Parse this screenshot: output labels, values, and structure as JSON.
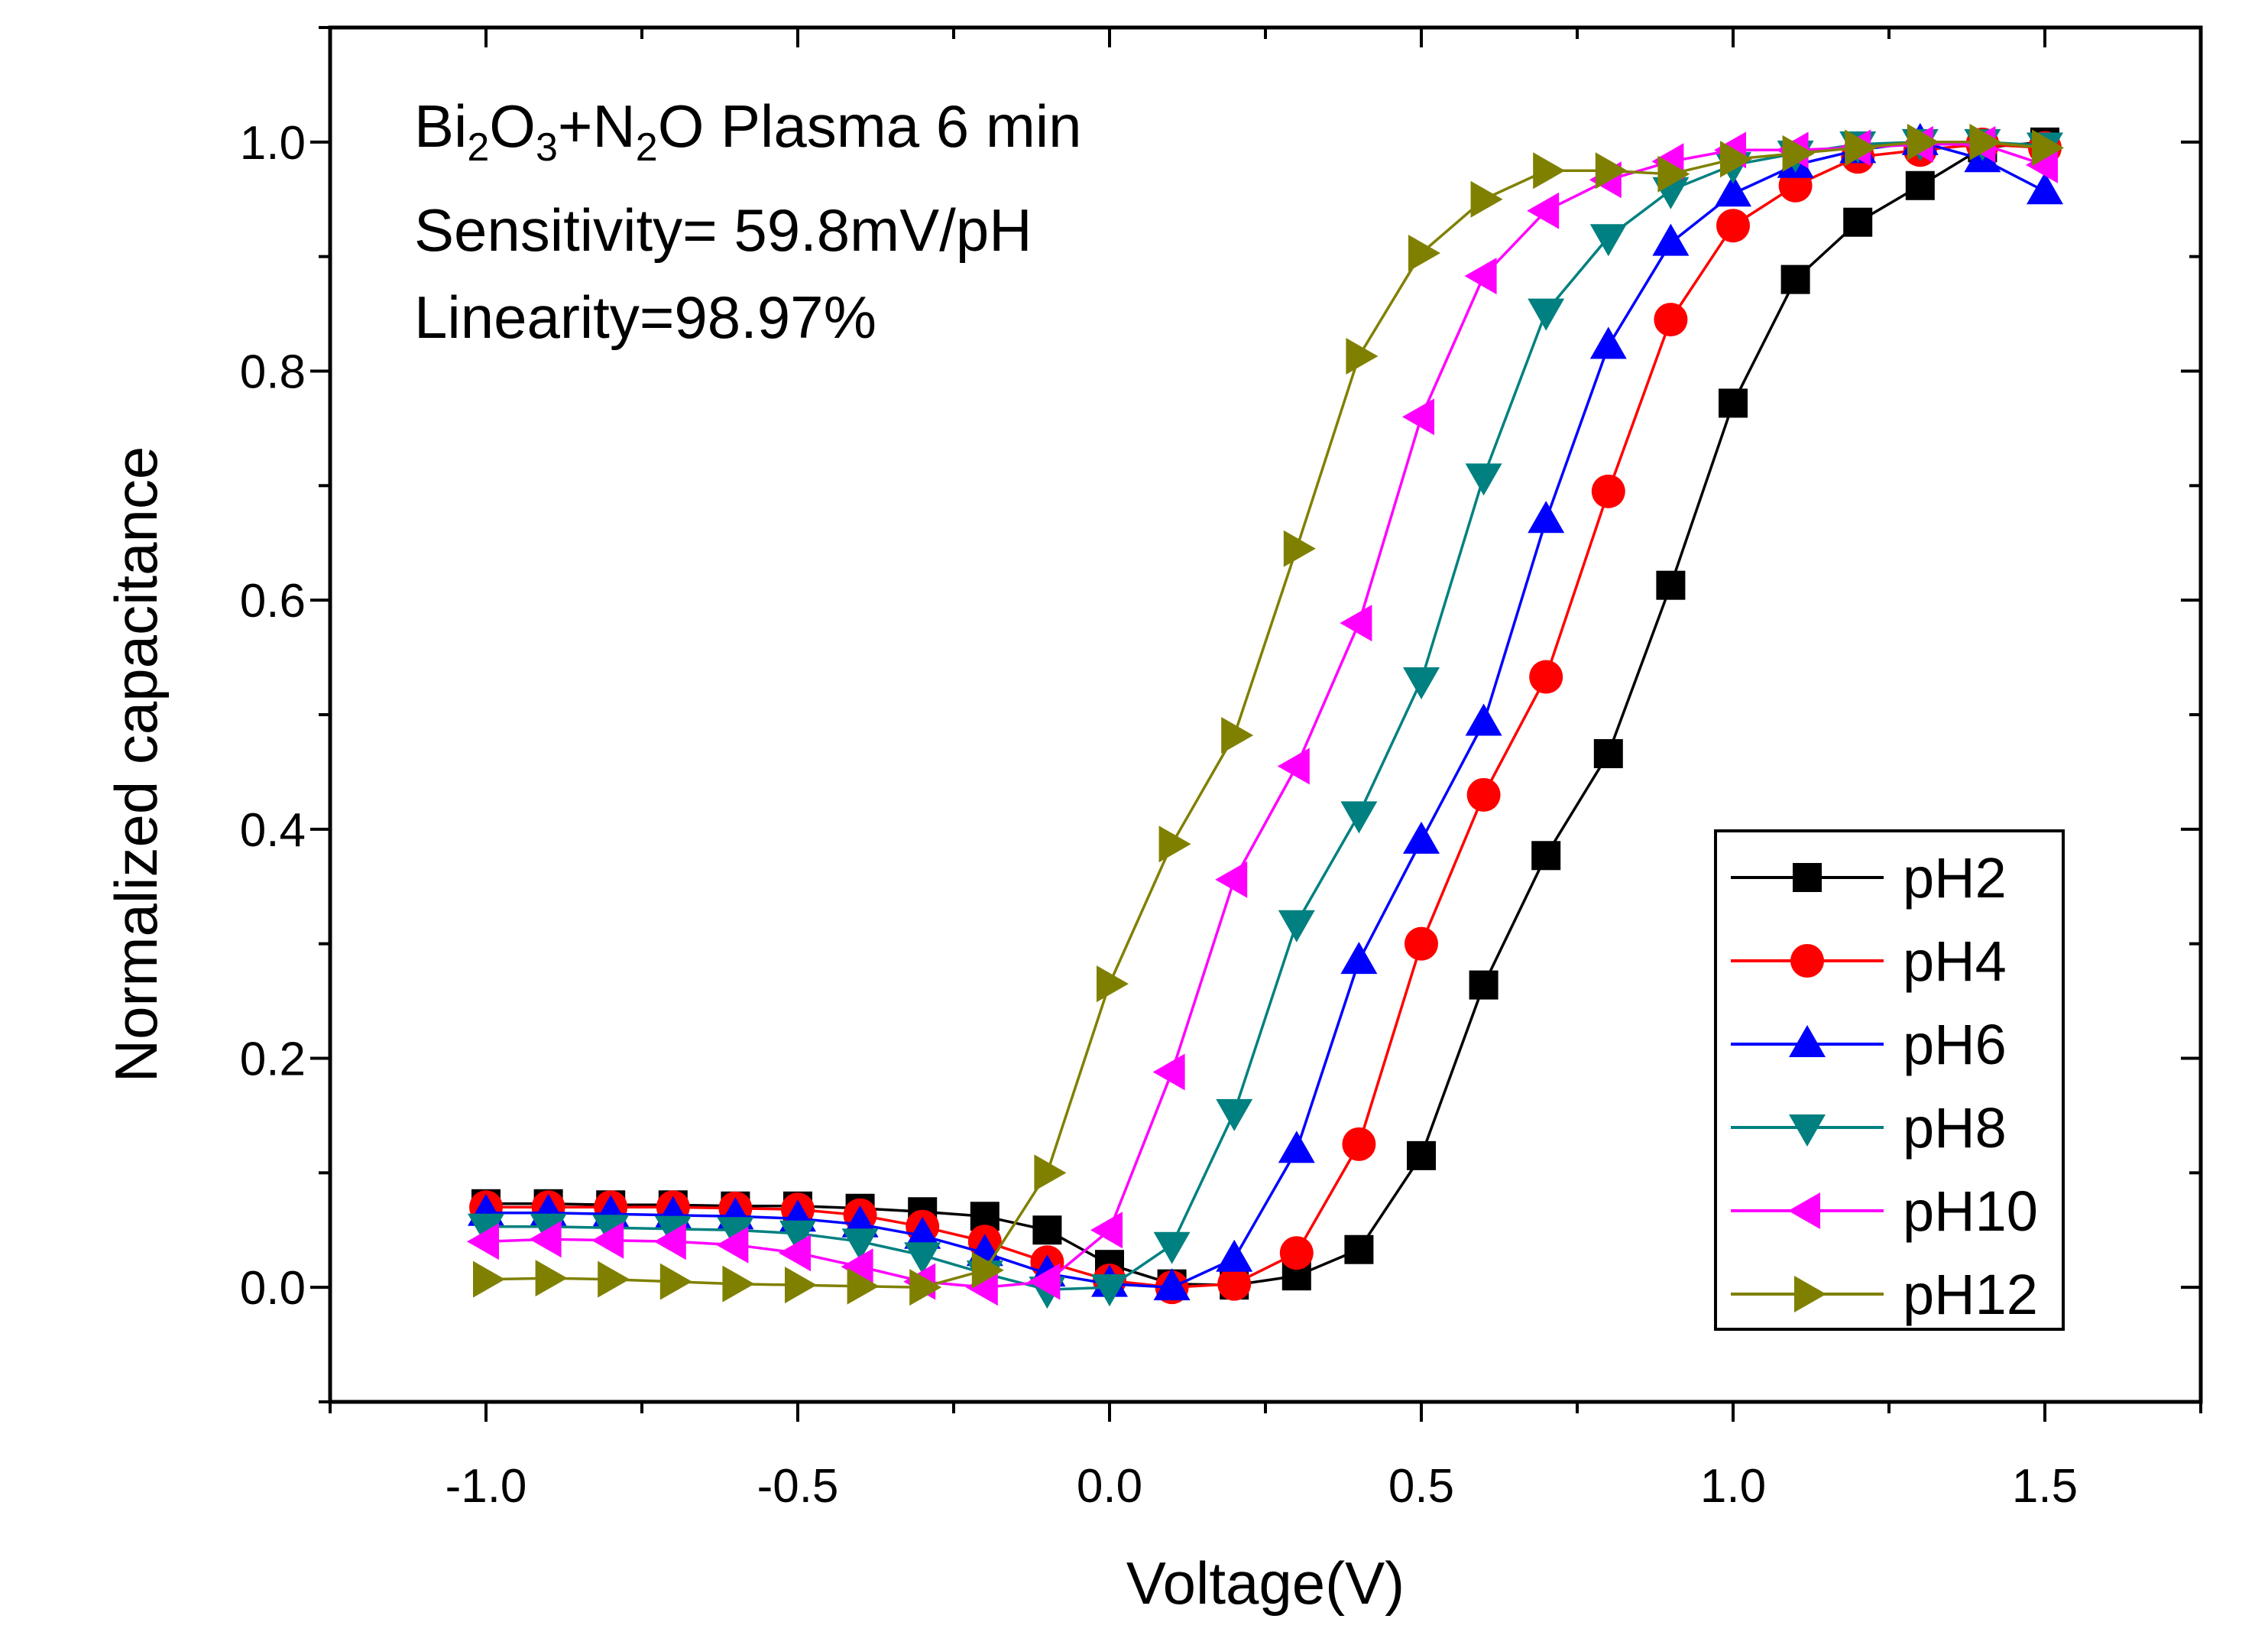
{
  "chart_data": {
    "type": "line",
    "xlabel": "Voltage(V)",
    "ylabel": "Normalized capacitance",
    "xlim": [
      -1.25,
      1.75
    ],
    "ylim": [
      -0.1,
      1.1
    ],
    "xticks": [
      "-1.0",
      "-0.5",
      "0.0",
      "0.5",
      "1.0",
      "1.5"
    ],
    "yticks": [
      "0.0",
      "0.2",
      "0.4",
      "0.6",
      "0.8",
      "1.0"
    ],
    "annotations": {
      "title_parts": [
        "Bi",
        "2",
        "O",
        "3",
        "+N",
        "2",
        "O Plasma 6 min"
      ],
      "sensitivity": "Sensitivity= 59.8mV/pH",
      "linearity": "Linearity=98.97%"
    },
    "legend_position": "bottom-right",
    "x": [
      -1.0,
      -0.9,
      -0.8,
      -0.7,
      -0.6,
      -0.5,
      -0.4,
      -0.3,
      -0.2,
      -0.1,
      0.0,
      0.1,
      0.2,
      0.3,
      0.4,
      0.5,
      0.6,
      0.7,
      0.8,
      0.9,
      1.0,
      1.1,
      1.2,
      1.3,
      1.4,
      1.5
    ],
    "series": [
      {
        "name": "pH2",
        "color": "#000000",
        "marker": "square",
        "values": [
          0.073,
          0.073,
          0.072,
          0.072,
          0.071,
          0.071,
          0.069,
          0.066,
          0.062,
          0.05,
          0.02,
          0.003,
          0.002,
          0.01,
          0.033,
          0.115,
          0.264,
          0.377,
          0.466,
          0.613,
          0.772,
          0.88,
          0.93,
          0.962,
          0.995,
          1.0
        ]
      },
      {
        "name": "pH4",
        "color": "#ff0000",
        "marker": "circle",
        "values": [
          0.07,
          0.07,
          0.07,
          0.07,
          0.069,
          0.068,
          0.063,
          0.053,
          0.04,
          0.022,
          0.006,
          0.0,
          0.003,
          0.03,
          0.125,
          0.3,
          0.43,
          0.533,
          0.695,
          0.845,
          0.927,
          0.962,
          0.987,
          0.993,
          0.998,
          0.995
        ]
      },
      {
        "name": "pH6",
        "color": "#0000ff",
        "marker": "triangle-up",
        "values": [
          0.065,
          0.065,
          0.064,
          0.063,
          0.062,
          0.06,
          0.055,
          0.045,
          0.03,
          0.012,
          0.003,
          0.0,
          0.025,
          0.12,
          0.285,
          0.39,
          0.493,
          0.67,
          0.822,
          0.912,
          0.955,
          0.98,
          0.993,
          1.0,
          0.985,
          0.957
        ]
      },
      {
        "name": "pH8",
        "color": "#008080",
        "marker": "triangle-down",
        "values": [
          0.053,
          0.053,
          0.052,
          0.051,
          0.05,
          0.047,
          0.04,
          0.028,
          0.012,
          -0.002,
          0.0,
          0.037,
          0.153,
          0.318,
          0.413,
          0.53,
          0.708,
          0.852,
          0.917,
          0.958,
          0.98,
          0.99,
          0.998,
          1.0,
          1.0,
          0.997
        ]
      },
      {
        "name": "pH10",
        "color": "#ff00ff",
        "marker": "triangle-left",
        "values": [
          0.04,
          0.042,
          0.041,
          0.04,
          0.037,
          0.03,
          0.018,
          0.005,
          0.0,
          0.005,
          0.05,
          0.188,
          0.356,
          0.455,
          0.58,
          0.76,
          0.883,
          0.94,
          0.967,
          0.983,
          0.993,
          0.993,
          0.995,
          0.998,
          0.998,
          0.98
        ]
      },
      {
        "name": "pH12",
        "color": "#808000",
        "marker": "triangle-right",
        "values": [
          0.007,
          0.008,
          0.007,
          0.005,
          0.003,
          0.002,
          0.001,
          0.0,
          0.015,
          0.1,
          0.265,
          0.387,
          0.482,
          0.645,
          0.813,
          0.903,
          0.95,
          0.975,
          0.975,
          0.972,
          0.985,
          0.99,
          0.995,
          1.0,
          1.0,
          0.995
        ]
      }
    ]
  }
}
